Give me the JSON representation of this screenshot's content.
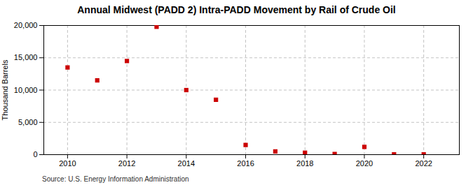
{
  "chart_data": {
    "type": "scatter",
    "title": "Annual Midwest (PADD 2) Intra-PADD Movement by Rail of Crude Oil",
    "ylabel": "Thousand Barrels",
    "source": "Source: U.S. Energy Information Administration",
    "x": [
      2010,
      2011,
      2012,
      2013,
      2014,
      2015,
      2016,
      2017,
      2018,
      2019,
      2020,
      2021,
      2022
    ],
    "values": [
      13500,
      11500,
      14500,
      19800,
      10000,
      8500,
      1500,
      500,
      300,
      100,
      1200,
      50,
      50
    ],
    "color": "#cc0000",
    "marker": "square",
    "xlim": [
      2009.2,
      2023.2
    ],
    "xticks": [
      2010,
      2012,
      2014,
      2016,
      2018,
      2020,
      2022
    ],
    "ylim": [
      0,
      20000
    ],
    "yticks": [
      0,
      {
        "value": 5000,
        "label": "5,000"
      },
      {
        "value": 10000,
        "label": "10,000"
      },
      {
        "value": 15000,
        "label": "15,000"
      },
      {
        "value": 20000,
        "label": "20,000"
      }
    ],
    "grid": true
  }
}
